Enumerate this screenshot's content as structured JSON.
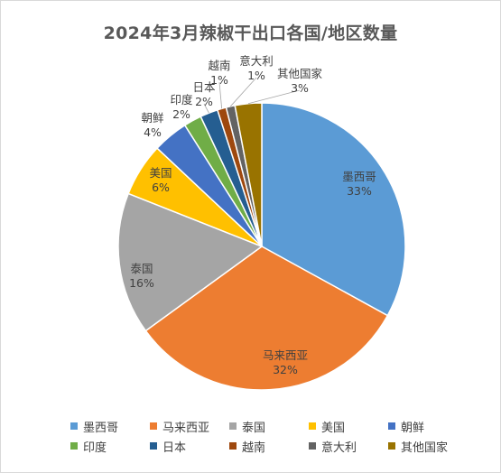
{
  "chart_data": {
    "type": "pie",
    "title": "2024年3月辣椒干出口各国/地区数量",
    "categories": [
      "墨西哥",
      "马来西亚",
      "泰国",
      "美国",
      "朝鲜",
      "印度",
      "日本",
      "越南",
      "意大利",
      "其他国家"
    ],
    "values": [
      33,
      32,
      16,
      6,
      4,
      2,
      2,
      1,
      1,
      3
    ],
    "value_labels": [
      "33%",
      "32%",
      "16%",
      "6%",
      "4%",
      "2%",
      "2%",
      "1%",
      "1%",
      "3%"
    ],
    "colors": [
      "#5b9bd5",
      "#ed7d31",
      "#a5a5a5",
      "#ffc000",
      "#4472c4",
      "#70ad47",
      "#255e91",
      "#9e480e",
      "#636363",
      "#997300"
    ],
    "legend_position": "bottom",
    "start_angle": "12 o'clock",
    "direction": "clockwise"
  }
}
